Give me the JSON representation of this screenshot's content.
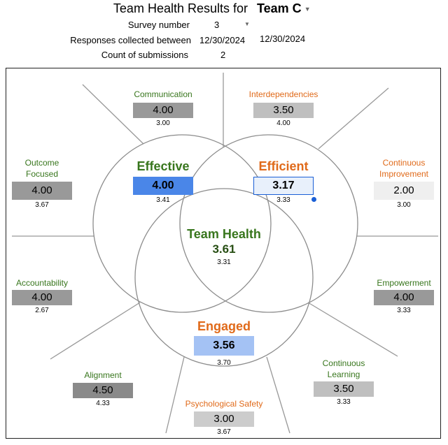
{
  "header": {
    "title": "Team Health Results for",
    "team": "Team C",
    "survey_label": "Survey number",
    "survey_value": "3",
    "responses_label": "Responses collected between",
    "date_start": "12/30/2024",
    "date_end": "12/30/2024",
    "count_label": "Count of submissions",
    "count_value": "2"
  },
  "outer": {
    "communication": {
      "label": "Communication",
      "value": "4.00",
      "sub": "3.00",
      "color": "#999999"
    },
    "interdependencies": {
      "label": "Interdependencies",
      "value": "3.50",
      "sub": "4.00",
      "color": "#bfbfbf"
    },
    "outcome_focused": {
      "label": "Outcome\nFocused",
      "value": "4.00",
      "sub": "3.67",
      "color": "#999999"
    },
    "continuous_improvement": {
      "label": "Continuous\nImprovement",
      "value": "2.00",
      "sub": "3.00",
      "color": "#efefef"
    },
    "accountability": {
      "label": "Accountability",
      "value": "4.00",
      "sub": "2.67",
      "color": "#999999"
    },
    "empowerment": {
      "label": "Empowerment",
      "value": "4.00",
      "sub": "3.33",
      "color": "#999999"
    },
    "alignment": {
      "label": "Alignment",
      "value": "4.50",
      "sub": "4.33",
      "color": "#8a8a8a"
    },
    "continuous_learning": {
      "label": "Continuous\nLearning",
      "value": "3.50",
      "sub": "3.33",
      "color": "#bfbfbf"
    },
    "psychological_safety": {
      "label": "Psychological Safety",
      "value": "3.00",
      "sub": "3.67",
      "color": "#cccccc"
    }
  },
  "venn": {
    "effective": {
      "label": "Effective",
      "value": "4.00",
      "sub": "3.41",
      "color": "#4a86e8"
    },
    "efficient": {
      "label": "Efficient",
      "value": "3.17",
      "sub": "3.33",
      "color": "#e8f0fb"
    },
    "engaged": {
      "label": "Engaged",
      "value": "3.56",
      "sub": "3.70",
      "color": "#a4c2f4"
    },
    "team_health": {
      "label": "Team Health",
      "value": "3.61",
      "sub": "3.31"
    }
  }
}
